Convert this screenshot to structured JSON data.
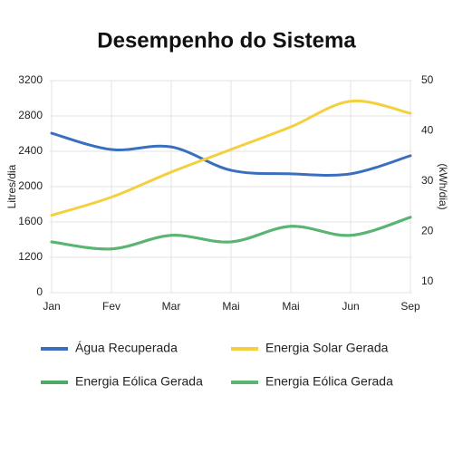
{
  "chart_data": {
    "type": "line",
    "title": "Desempenho do Sistema",
    "y_label": "Litres/dia",
    "y2_label": "(kWh/dia)",
    "categories": [
      "Jan",
      "Fev",
      "Mar",
      "Mai",
      "Mai",
      "Jun",
      "Sep"
    ],
    "ylim": [
      800,
      3200
    ],
    "yticks": [
      {
        "value": 800,
        "label": "0"
      },
      1200,
      1600,
      2000,
      2400,
      2800,
      3200
    ],
    "y2lim": [
      7.8,
      50
    ],
    "y2ticks": [
      10,
      20,
      30,
      40,
      50
    ],
    "grid": true,
    "series": [
      {
        "name": "Água Recuperada",
        "color": "#3a6fbf",
        "values": [
          2605,
          2420,
          2450,
          2185,
          2145,
          2145,
          2350
        ]
      },
      {
        "name": "Energia Solar Gerada",
        "color": "#f4d03f",
        "axis": "y2",
        "values": [
          23.2,
          26.8,
          31.8,
          36.3,
          40.8,
          45.9,
          43.5
        ]
      },
      {
        "name": "Energia Eólica Gerada",
        "color": "#4caa66",
        "axis": "y2",
        "values": [
          17.9,
          16.5,
          19.2,
          17.9,
          21,
          19.2,
          22.8
        ]
      },
      {
        "name": "Energia Eólica Gerada",
        "color": "#5ab573",
        "axis": "y2",
        "values": [
          17.9,
          16.5,
          19.2,
          17.9,
          21,
          19.2,
          22.8
        ]
      }
    ]
  }
}
